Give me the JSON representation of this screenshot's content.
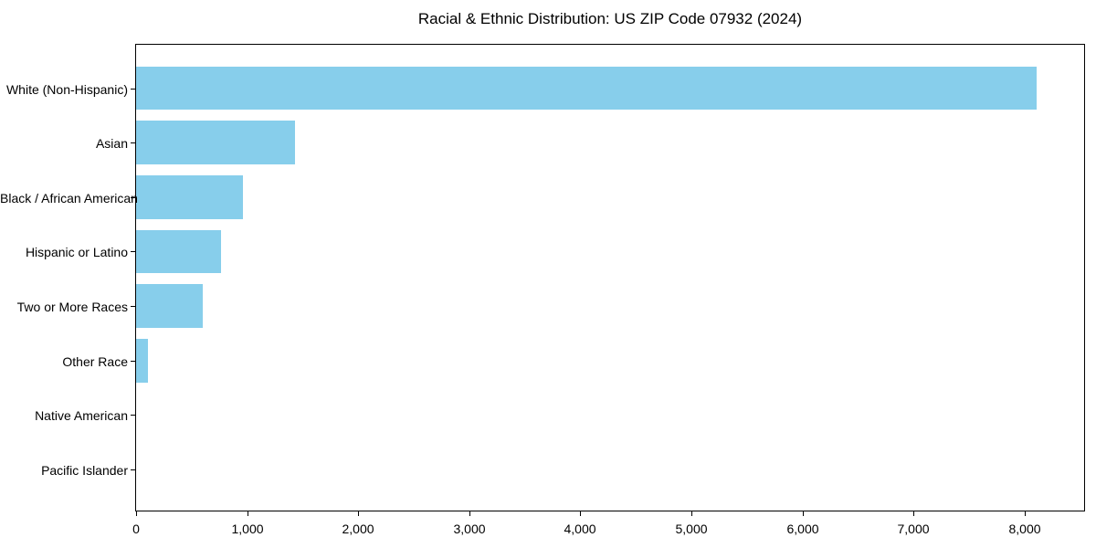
{
  "chart_data": {
    "type": "bar",
    "orientation": "horizontal",
    "title": "Racial & Ethnic Distribution: US ZIP Code 07932 (2024)",
    "categories": [
      "White (Non-Hispanic)",
      "Asian",
      "Black / African American",
      "Hispanic or Latino",
      "Two or More Races",
      "Other Race",
      "Native American",
      "Pacific Islander"
    ],
    "values": [
      8110,
      1430,
      960,
      765,
      600,
      105,
      0,
      0
    ],
    "bar_color": "#87CEEB",
    "background_color": "#ffffff",
    "spine_color": "#000000",
    "text_color": "#000000",
    "xlabel": "",
    "ylabel": "",
    "xlim": [
      0,
      8535
    ],
    "x_ticks": [
      0,
      1000,
      2000,
      3000,
      4000,
      5000,
      6000,
      7000,
      8000
    ],
    "x_tick_labels": [
      "0",
      "1,000",
      "2,000",
      "3,000",
      "4,000",
      "5,000",
      "6,000",
      "7,000",
      "8,000"
    ],
    "grid": false,
    "legend": "none",
    "data_labels": "none"
  }
}
